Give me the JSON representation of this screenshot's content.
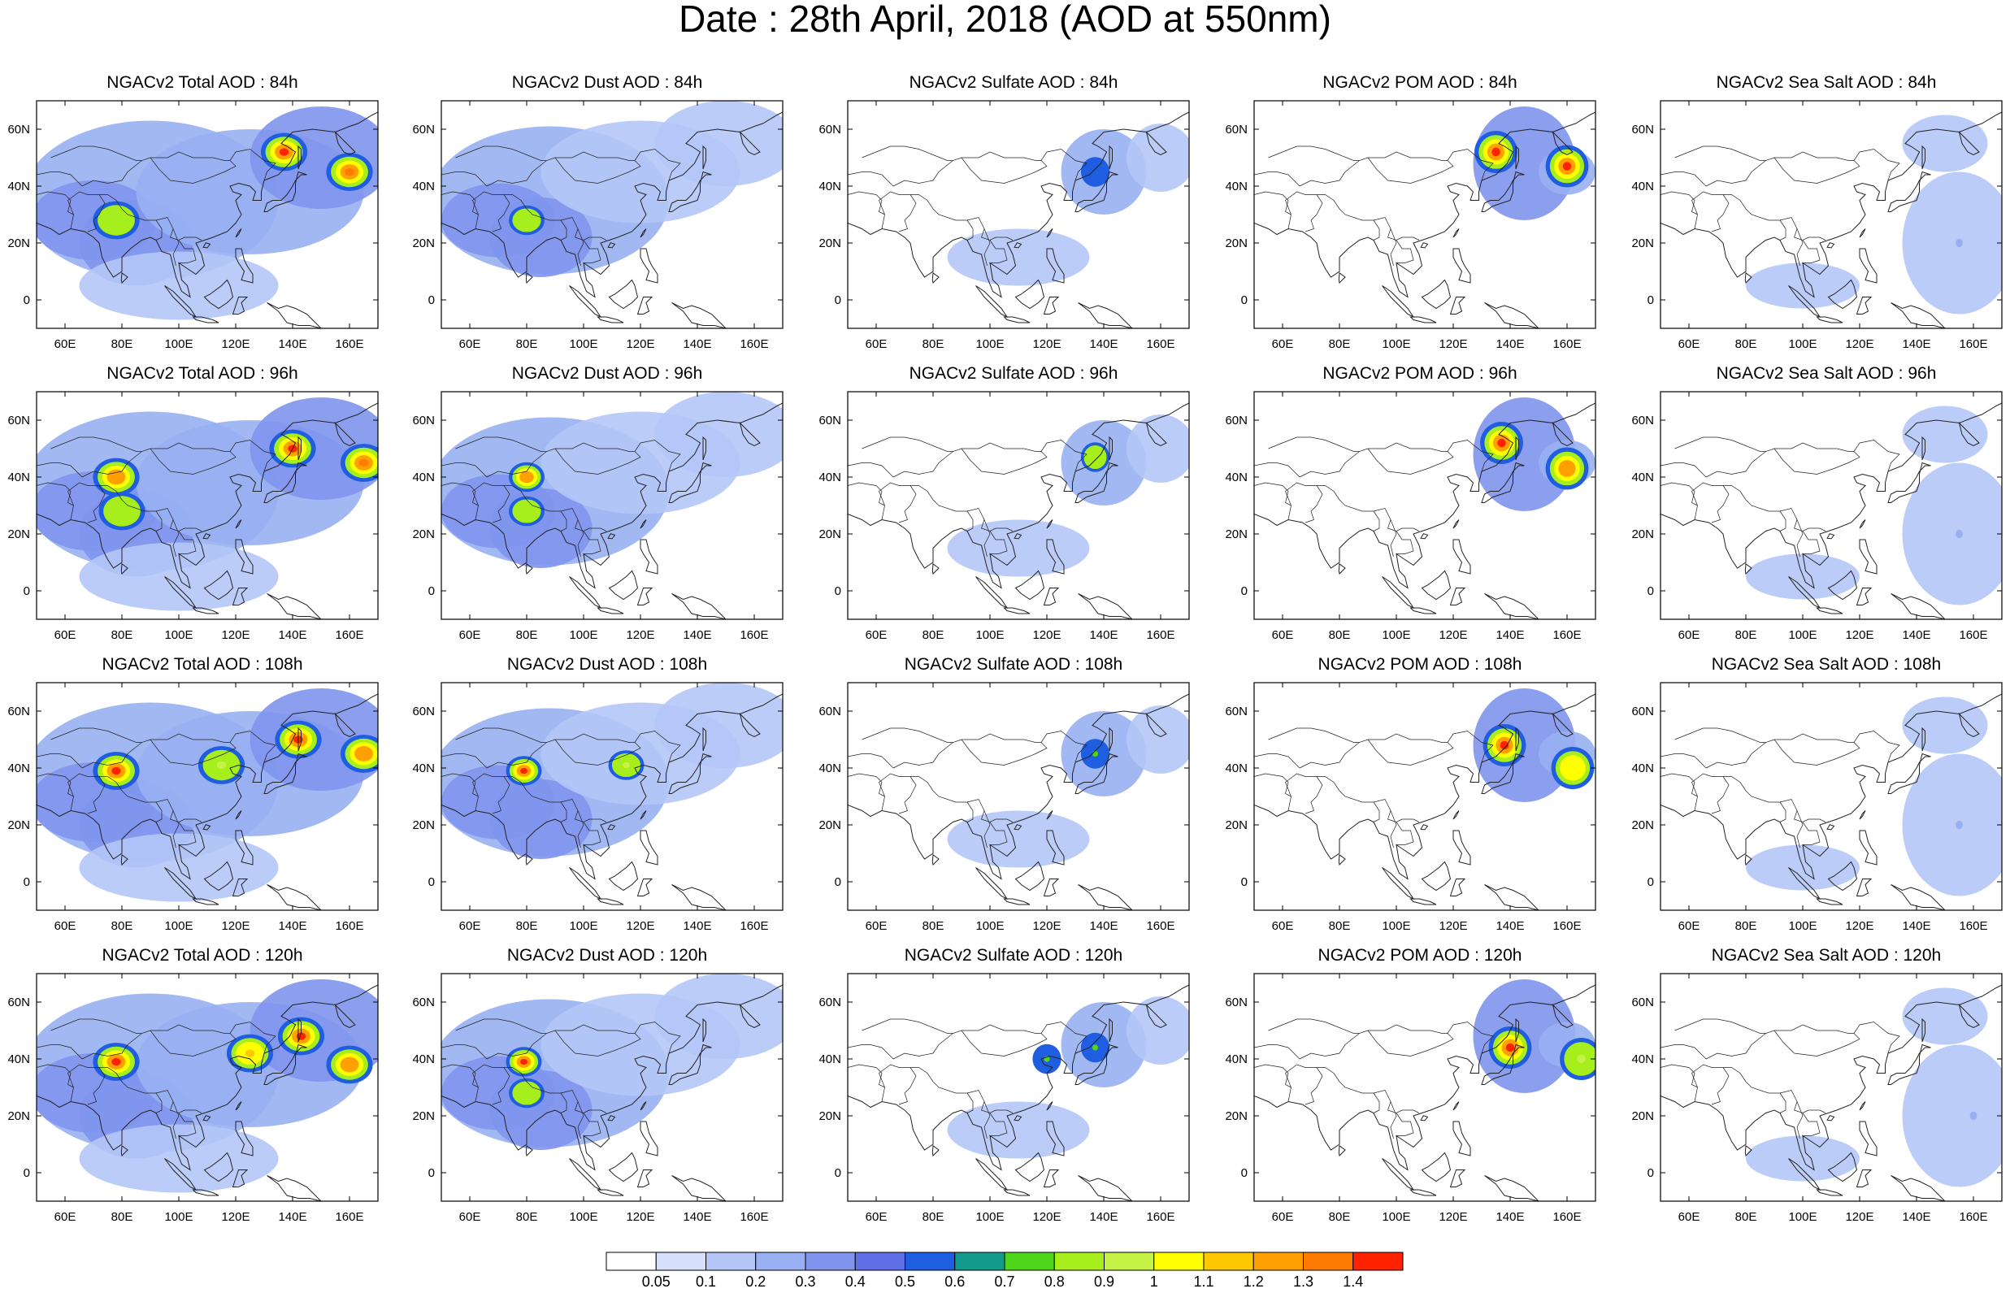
{
  "title": "Date : 28th April, 2018 (AOD at 550nm)",
  "lon_labels": [
    "60E",
    "80E",
    "100E",
    "120E",
    "140E",
    "160E"
  ],
  "lat_labels": [
    "60N",
    "40N",
    "20N",
    "0"
  ],
  "rows": [
    {
      "lead": "84h",
      "titles": [
        "NGACv2 Total AOD : 84h",
        "NGACv2 Dust AOD : 84h",
        "NGACv2 Sulfate AOD : 84h",
        "NGACv2 POM AOD : 84h",
        "NGACv2 Sea Salt AOD : 84h"
      ]
    },
    {
      "lead": "96h",
      "titles": [
        "NGACv2 Total AOD : 96h",
        "NGACv2 Dust AOD : 96h",
        "NGACv2 Sulfate AOD : 96h",
        "NGACv2 POM AOD : 96h",
        "NGACv2 Sea Salt AOD : 96h"
      ]
    },
    {
      "lead": "108h",
      "titles": [
        "NGACv2 Total AOD : 108h",
        "NGACv2 Dust AOD : 108h",
        "NGACv2 Sulfate AOD : 108h",
        "NGACv2 POM AOD : 108h",
        "NGACv2 Sea Salt AOD : 108h"
      ]
    },
    {
      "lead": "120h",
      "titles": [
        "NGACv2 Total AOD : 120h",
        "NGACv2 Dust AOD : 120h",
        "NGACv2 Sulfate AOD : 120h",
        "NGACv2 POM AOD : 120h",
        "NGACv2 Sea Salt  AOD : 120h"
      ]
    }
  ],
  "colorbar": {
    "labels": [
      "0.05",
      "0.1",
      "0.2",
      "0.3",
      "0.4",
      "0.5",
      "0.6",
      "0.7",
      "0.8",
      "0.9",
      "1",
      "1.1",
      "1.2",
      "1.3",
      "1.4"
    ],
    "colors": [
      "#ffffff",
      "#d6e0fb",
      "#b4c6f7",
      "#98b0f2",
      "#7f95ed",
      "#5f6fe6",
      "#1f5ee0",
      "#129a8c",
      "#4fd61a",
      "#a6ee1c",
      "#c6f247",
      "#ffff00",
      "#ffc800",
      "#ffa000",
      "#ff7a00",
      "#ff2200"
    ]
  },
  "chart_data": {
    "type": "heatmap",
    "title": "Date : 28th April, 2018 (AOD at 550nm)",
    "variables": [
      "Total",
      "Dust",
      "Sulfate",
      "POM",
      "Sea Salt"
    ],
    "lead_times": [
      "84h",
      "96h",
      "108h",
      "120h"
    ],
    "xlim": [
      50,
      170
    ],
    "ylim": [
      -10,
      70
    ],
    "xticks": [
      60,
      80,
      100,
      120,
      140,
      160
    ],
    "yticks": [
      60,
      40,
      20,
      0
    ],
    "scale_levels": [
      0.05,
      0.1,
      0.2,
      0.3,
      0.4,
      0.5,
      0.6,
      0.7,
      0.8,
      0.9,
      1,
      1.1,
      1.2,
      1.3,
      1.4
    ],
    "features": {
      "Total": [
        {
          "lead": "84h",
          "hotspots": [
            {
              "lon": 137,
              "lat": 52,
              "value": 1.4
            },
            {
              "lon": 160,
              "lat": 45,
              "value": 1.3
            },
            {
              "lon": 78,
              "lat": 28,
              "value": 0.8
            }
          ]
        },
        {
          "lead": "96h",
          "hotspots": [
            {
              "lon": 140,
              "lat": 50,
              "value": 1.4
            },
            {
              "lon": 165,
              "lat": 45,
              "value": 1.3
            },
            {
              "lon": 78,
              "lat": 40,
              "value": 1.2
            },
            {
              "lon": 80,
              "lat": 28,
              "value": 0.8
            }
          ]
        },
        {
          "lead": "108h",
          "hotspots": [
            {
              "lon": 142,
              "lat": 50,
              "value": 1.4
            },
            {
              "lon": 78,
              "lat": 39,
              "value": 1.4
            },
            {
              "lon": 115,
              "lat": 41,
              "value": 0.9
            },
            {
              "lon": 165,
              "lat": 45,
              "value": 1.2
            }
          ]
        },
        {
          "lead": "120h",
          "hotspots": [
            {
              "lon": 143,
              "lat": 48,
              "value": 1.4
            },
            {
              "lon": 78,
              "lat": 39,
              "value": 1.4
            },
            {
              "lon": 125,
              "lat": 42,
              "value": 1.1
            },
            {
              "lon": 160,
              "lat": 38,
              "value": 1.2
            }
          ]
        }
      ],
      "Dust": [
        {
          "lead": "84h",
          "hotspots": [
            {
              "lon": 80,
              "lat": 28,
              "value": 0.8
            }
          ]
        },
        {
          "lead": "96h",
          "hotspots": [
            {
              "lon": 80,
              "lat": 40,
              "value": 1.2
            },
            {
              "lon": 80,
              "lat": 28,
              "value": 0.8
            }
          ]
        },
        {
          "lead": "108h",
          "hotspots": [
            {
              "lon": 79,
              "lat": 39,
              "value": 1.4
            },
            {
              "lon": 115,
              "lat": 41,
              "value": 0.9
            }
          ]
        },
        {
          "lead": "120h",
          "hotspots": [
            {
              "lon": 79,
              "lat": 39,
              "value": 1.4
            },
            {
              "lon": 80,
              "lat": 28,
              "value": 0.8
            }
          ]
        }
      ],
      "Sulfate": [
        {
          "lead": "84h",
          "hotspots": [
            {
              "lon": 137,
              "lat": 45,
              "value": 0.5
            }
          ]
        },
        {
          "lead": "96h",
          "hotspots": [
            {
              "lon": 137,
              "lat": 47,
              "value": 0.8
            }
          ]
        },
        {
          "lead": "108h",
          "hotspots": [
            {
              "lon": 137,
              "lat": 45,
              "value": 0.7
            }
          ]
        },
        {
          "lead": "120h",
          "hotspots": [
            {
              "lon": 137,
              "lat": 44,
              "value": 0.7
            },
            {
              "lon": 120,
              "lat": 40,
              "value": 0.7
            }
          ]
        }
      ],
      "POM": [
        {
          "lead": "84h",
          "hotspots": [
            {
              "lon": 135,
              "lat": 52,
              "value": 1.4
            },
            {
              "lon": 160,
              "lat": 47,
              "value": 1.4
            }
          ]
        },
        {
          "lead": "96h",
          "hotspots": [
            {
              "lon": 137,
              "lat": 52,
              "value": 1.4
            },
            {
              "lon": 160,
              "lat": 43,
              "value": 1.2
            }
          ]
        },
        {
          "lead": "108h",
          "hotspots": [
            {
              "lon": 138,
              "lat": 48,
              "value": 1.4
            },
            {
              "lon": 162,
              "lat": 40,
              "value": 1.0
            }
          ]
        },
        {
          "lead": "120h",
          "hotspots": [
            {
              "lon": 140,
              "lat": 44,
              "value": 1.4
            },
            {
              "lon": 165,
              "lat": 40,
              "value": 0.9
            }
          ]
        }
      ],
      "Sea Salt": [
        {
          "lead": "84h",
          "hotspots": [
            {
              "lon": 155,
              "lat": 20,
              "value": 0.2
            }
          ]
        },
        {
          "lead": "96h",
          "hotspots": [
            {
              "lon": 155,
              "lat": 20,
              "value": 0.2
            }
          ]
        },
        {
          "lead": "108h",
          "hotspots": [
            {
              "lon": 155,
              "lat": 20,
              "value": 0.2
            }
          ]
        },
        {
          "lead": "120h",
          "hotspots": [
            {
              "lon": 160,
              "lat": 20,
              "value": 0.2
            }
          ]
        }
      ]
    }
  }
}
